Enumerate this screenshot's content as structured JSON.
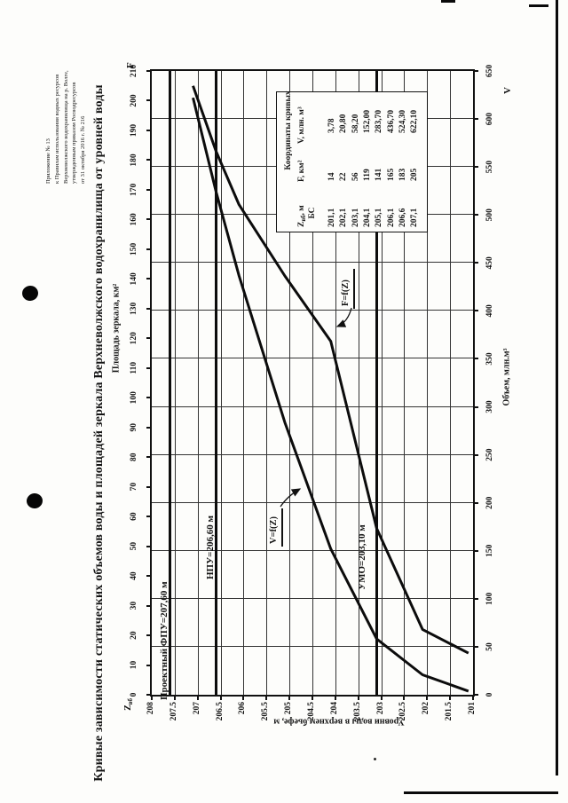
{
  "page": {
    "appendix": [
      "Приложение № 13",
      "к Правилам использования водных ресурсов",
      "Верхневолжского водохранилища на р. Волге,",
      "утвержденным приказом Росводресурсов",
      "от 31 октября 2016 г. № 216"
    ],
    "title": "Кривые зависимости статических объемов воды и площадей зеркала Верхневолжского водохранилища от уровней воды"
  },
  "chart_data": {
    "type": "line",
    "z_axis": {
      "label": "Уровни воды в верхнем бьефе, м",
      "corner_pre": "Z",
      "corner_sub": "вб",
      "min": 201,
      "max": 208,
      "step": 0.5
    },
    "volume_axis": {
      "label": "Объем, млн.м³",
      "symbol": "V",
      "min": 0,
      "max": 650,
      "step": 50
    },
    "area_axis": {
      "label": "Площадь зеркала, км²",
      "symbol": "F",
      "min": 0,
      "max": 210,
      "step": 10
    },
    "z_values": [
      201.1,
      202.1,
      203.1,
      204.1,
      205.1,
      206.1,
      206.6,
      207.1
    ],
    "series": [
      {
        "name": "V=f(Z)",
        "axis": "volume",
        "values": [
          3.78,
          20.8,
          58.2,
          152.0,
          283.7,
          436.7,
          524.3,
          622.1
        ]
      },
      {
        "name": "F=f(Z)",
        "axis": "area",
        "values": [
          14,
          22,
          56,
          119,
          141,
          165,
          183,
          205
        ]
      }
    ],
    "reference_lines": [
      {
        "label": "Проектный  ФПУ=207,60 м",
        "z": 207.6
      },
      {
        "label": "НПУ=206,60 м",
        "z": 206.6
      },
      {
        "label": "УМО=203,10 м",
        "z": 203.1
      }
    ],
    "table": {
      "title": "Координаты кривых",
      "columns": [
        {
          "pre": "Z",
          "sub": "вб",
          "post": ", м",
          "line2": "БС"
        },
        {
          "label": "F, км²"
        },
        {
          "label": "V, млн. м³"
        }
      ]
    }
  }
}
